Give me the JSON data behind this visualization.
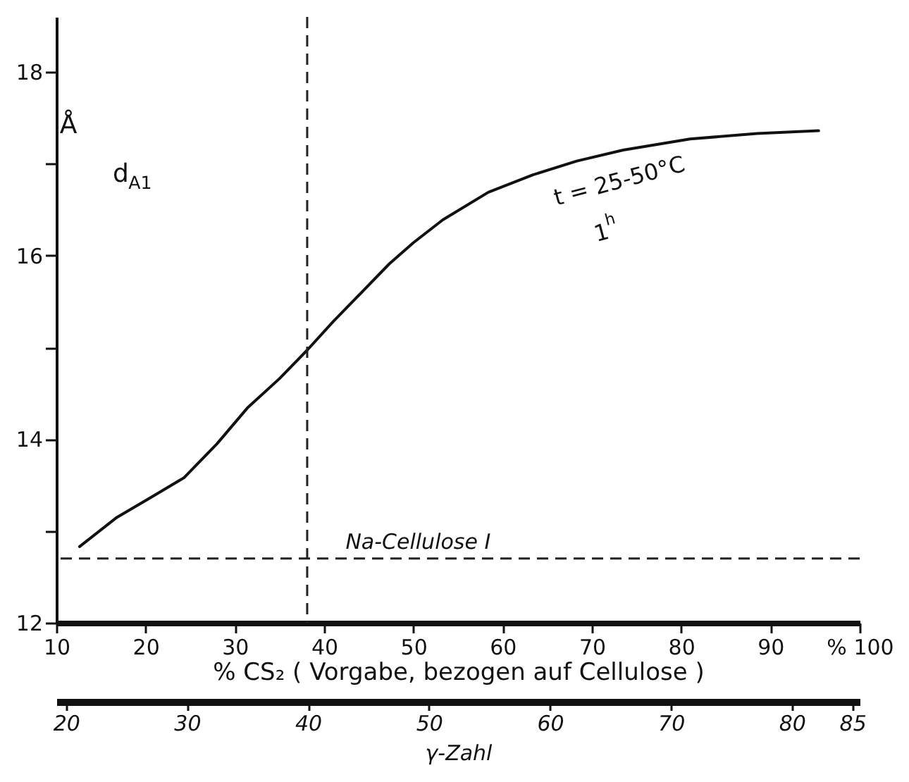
{
  "chart_data": {
    "type": "line",
    "xlabel": "% CS₂ ( Vorgabe, bezogen auf Cellulose )",
    "ylabel": "Å",
    "x2label": "γ-Zahl",
    "x": [
      12.6,
      16.8,
      20.5,
      24.3,
      28,
      31.4,
      35,
      38.1,
      41,
      43.4,
      47.3,
      50,
      53.3,
      58.4,
      63.4,
      68.3,
      73.5,
      81,
      88.5,
      95.4
    ],
    "series": [
      {
        "color": "#111111",
        "values": [
          12.83,
          13.15,
          13.36,
          13.58,
          13.95,
          14.34,
          14.66,
          14.97,
          15.28,
          15.52,
          15.91,
          16.14,
          16.39,
          16.69,
          16.88,
          17.03,
          17.15,
          17.27,
          17.33,
          17.36
        ]
      }
    ],
    "xlim": [
      10,
      100
    ],
    "xticks": [
      10,
      20,
      30,
      40,
      50,
      60,
      70,
      80,
      90,
      {
        "value": 100,
        "label": "% 100"
      }
    ],
    "ylim": [
      12,
      18.6
    ],
    "yticks": [
      12,
      {
        "value": 13,
        "label": null
      },
      14,
      {
        "value": 15,
        "label": null
      },
      16,
      {
        "value": 17,
        "label": null
      },
      18
    ],
    "x2lim": [
      19.2,
      85.6
    ],
    "x2ticks": [
      20,
      30,
      40,
      50,
      60,
      70,
      80,
      85
    ],
    "ref_lines": [
      {
        "axis": "y",
        "value": 12.7,
        "label": "Na-Cellulose I",
        "line_style": "dashed",
        "color": "#222222"
      },
      {
        "axis": "x",
        "value": 38.1,
        "line_style": "dashed",
        "color": "#222222"
      }
    ],
    "annotations": [
      "d$_{A1}$",
      "t = 25-50°C",
      "1$^{h}$"
    ]
  }
}
